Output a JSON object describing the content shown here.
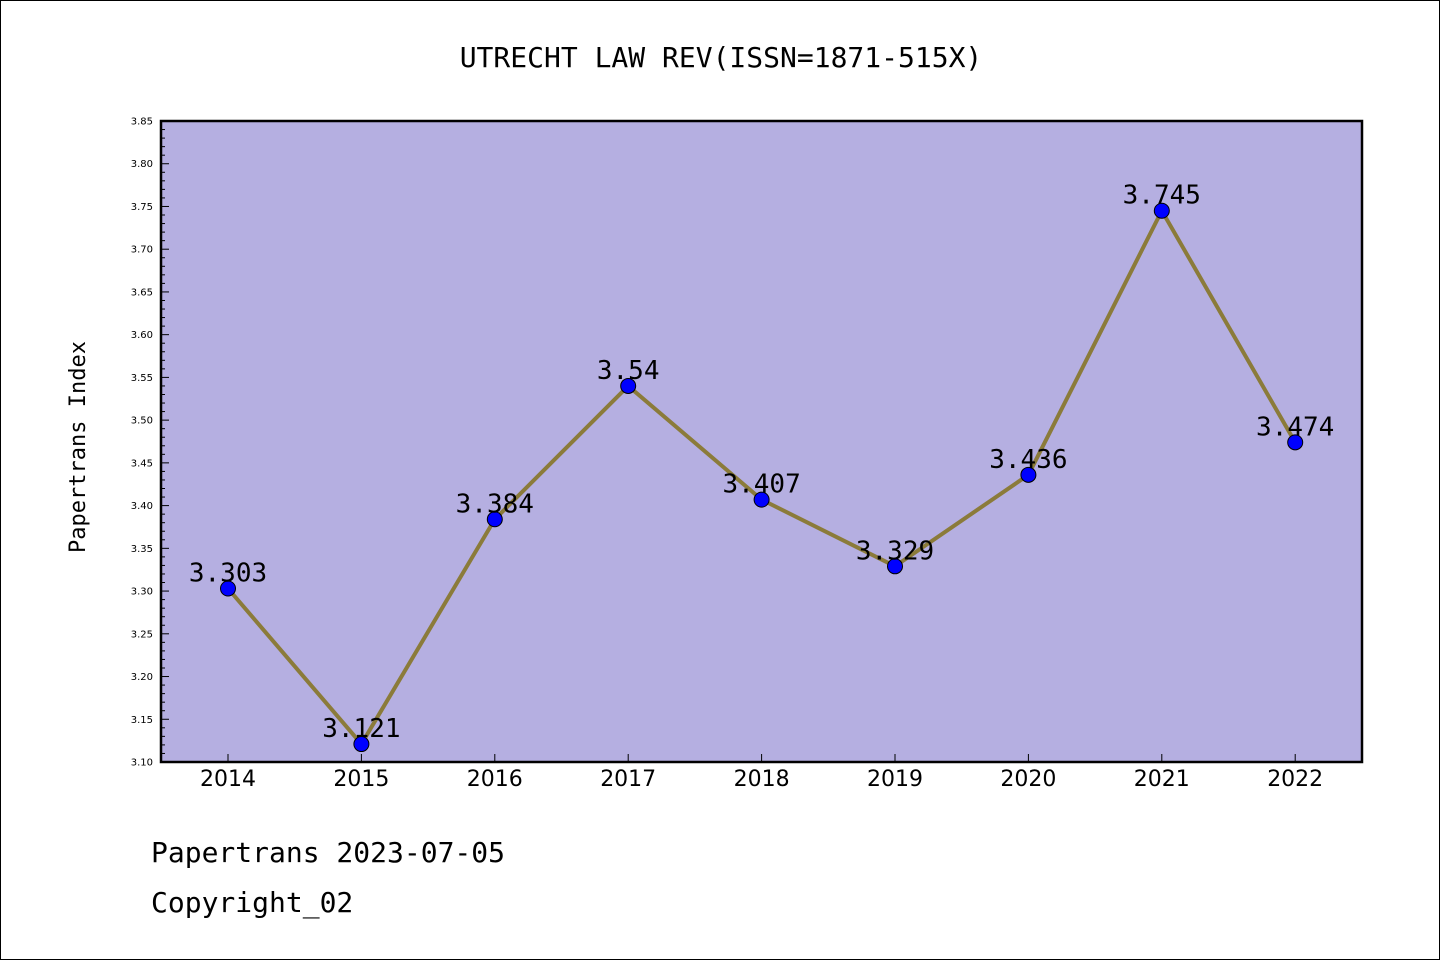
{
  "chart_data": {
    "type": "line",
    "title": "UTRECHT LAW REV(ISSN=1871-515X)",
    "xlabel": "",
    "ylabel": "Papertrans Index",
    "categories": [
      "2014",
      "2015",
      "2016",
      "2017",
      "2018",
      "2019",
      "2020",
      "2021",
      "2022"
    ],
    "values": [
      3.303,
      3.121,
      3.384,
      3.54,
      3.407,
      3.329,
      3.436,
      3.745,
      3.474
    ],
    "data_labels": [
      "3.303",
      "3.121",
      "3.384",
      "3.54",
      "3.407",
      "3.329",
      "3.436",
      "3.745",
      "3.474"
    ],
    "ylim": [
      3.1,
      3.85
    ],
    "yticks": [
      "3.10",
      "3.15",
      "3.20",
      "3.25",
      "3.30",
      "3.35",
      "3.40",
      "3.45",
      "3.50",
      "3.55",
      "3.60",
      "3.65",
      "3.70",
      "3.75",
      "3.80",
      "3.85"
    ],
    "grid": false,
    "colors": {
      "plot_background": "#b5afe1",
      "line": "#8b7b3a",
      "marker": "#0000ff"
    }
  },
  "footer": {
    "line1": "Papertrans 2023-07-05",
    "line2": "Copyright_02"
  }
}
